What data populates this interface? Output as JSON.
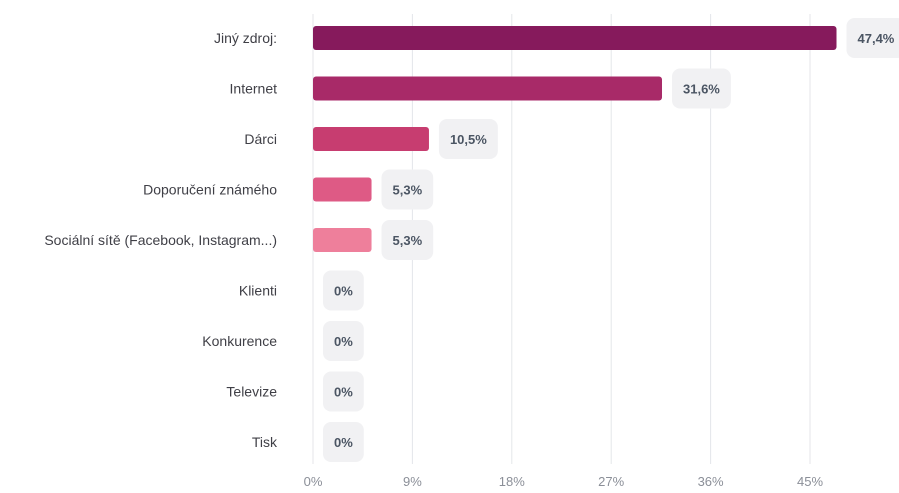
{
  "chart_data": {
    "type": "bar",
    "orientation": "horizontal",
    "categories": [
      "Jiný zdroj:",
      "Internet",
      "Dárci",
      "Doporučení známého",
      "Sociální sítě (Facebook, Instagram...)",
      "Klienti",
      "Konkurence",
      "Televize",
      "Tisk"
    ],
    "values": [
      47.4,
      31.6,
      10.5,
      5.3,
      5.3,
      0,
      0,
      0,
      0
    ],
    "value_labels": [
      "47,4%",
      "31,6%",
      "10,5%",
      "5,3%",
      "5,3%",
      "0%",
      "0%",
      "0%",
      "0%"
    ],
    "xlim": [
      0,
      48
    ],
    "x_ticks": [
      0,
      9,
      18,
      27,
      36,
      45
    ],
    "x_tick_labels": [
      "0%",
      "9%",
      "18%",
      "27%",
      "36%",
      "45%"
    ],
    "grid": true,
    "bar_colors": [
      "#861a5c",
      "#a82a68",
      "#c73d70",
      "#de5a85",
      "#ee7f9b",
      "#ee7f9b",
      "#ee7f9b",
      "#ee7f9b",
      "#ee7f9b"
    ],
    "badge_color": "#f1f1f3",
    "grid_color": "#e4e6ea",
    "title": "",
    "xlabel": "",
    "ylabel": ""
  }
}
